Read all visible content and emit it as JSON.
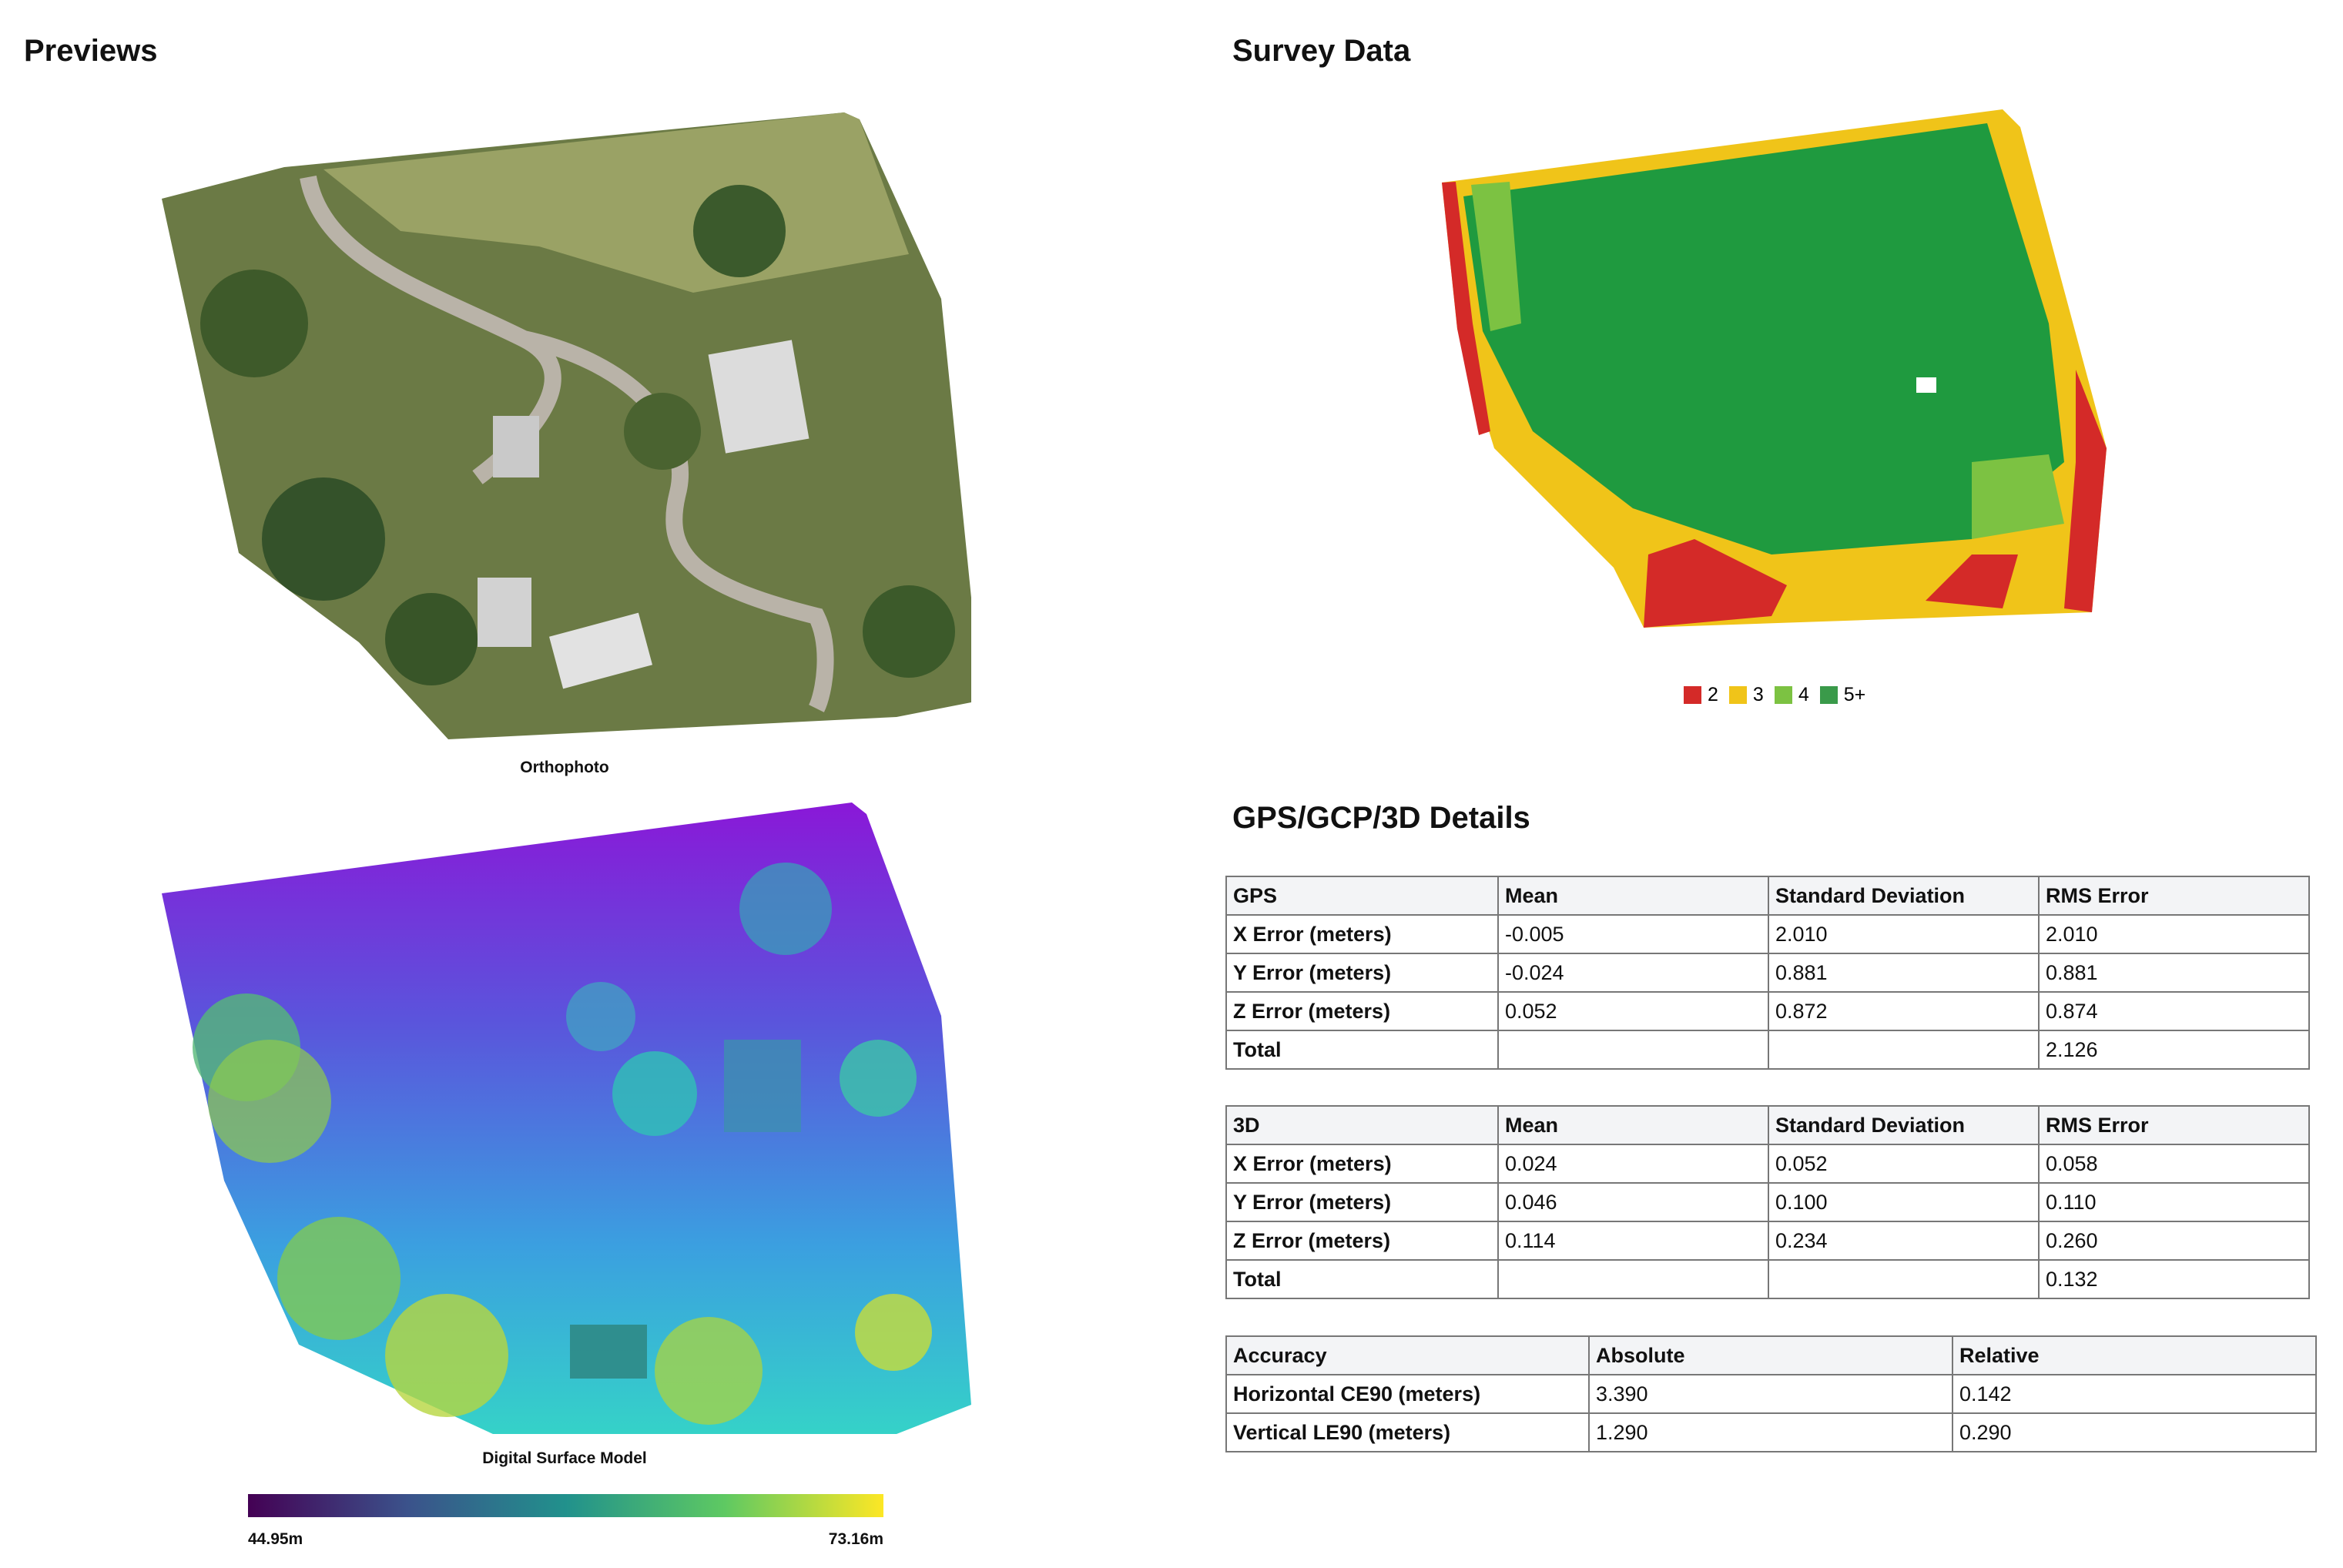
{
  "previews": {
    "title": "Previews",
    "orthophoto_caption": "Orthophoto",
    "dsm_caption": "Digital Surface Model",
    "colorbar": {
      "min_label": "44.95m",
      "max_label": "73.16m"
    }
  },
  "survey": {
    "title": "Survey Data",
    "legend": [
      "2",
      "3",
      "4",
      "5+"
    ]
  },
  "details": {
    "title": "GPS/GCP/3D Details",
    "tables": [
      {
        "header": [
          "GPS",
          "Mean",
          "Standard Deviation",
          "RMS Error"
        ],
        "rows": [
          [
            "X Error (meters)",
            "-0.005",
            "2.010",
            "2.010"
          ],
          [
            "Y Error (meters)",
            "-0.024",
            "0.881",
            "0.881"
          ],
          [
            "Z Error (meters)",
            "0.052",
            "0.872",
            "0.874"
          ],
          [
            "Total",
            null,
            null,
            "2.126"
          ]
        ]
      },
      {
        "header": [
          "3D",
          "Mean",
          "Standard Deviation",
          "RMS Error"
        ],
        "rows": [
          [
            "X Error (meters)",
            "0.024",
            "0.052",
            "0.058"
          ],
          [
            "Y Error (meters)",
            "0.046",
            "0.100",
            "0.110"
          ],
          [
            "Z Error (meters)",
            "0.114",
            "0.234",
            "0.260"
          ],
          [
            "Total",
            null,
            null,
            "0.132"
          ]
        ]
      },
      {
        "header": [
          "Accuracy",
          "Absolute",
          "Relative"
        ],
        "rows": [
          [
            "Horizontal CE90 (meters)",
            "3.390",
            "0.142"
          ],
          [
            "Vertical LE90 (meters)",
            "1.290",
            "0.290"
          ]
        ]
      }
    ]
  }
}
